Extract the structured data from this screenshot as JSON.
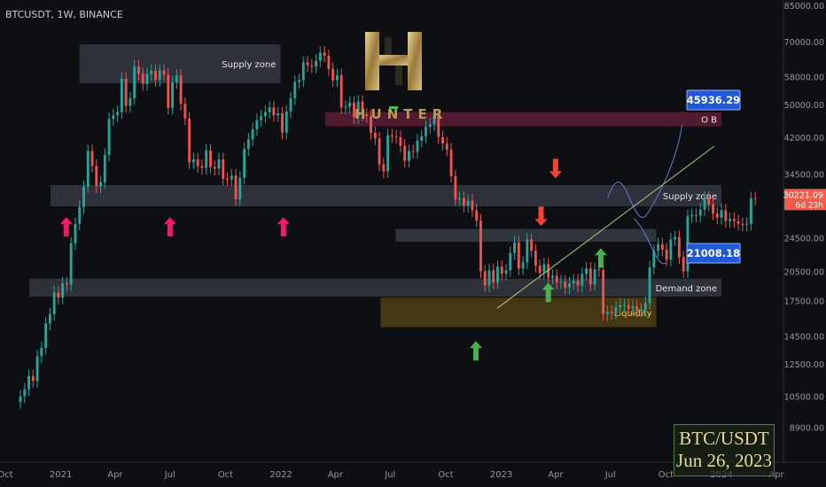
{
  "header": {
    "symbol": "BTCUSDT, 1W, BINANCE"
  },
  "logo": {
    "text": "HUNTER"
  },
  "watermark": {
    "pair": "BTC/USDT",
    "date": "Jun 26, 2023"
  },
  "colors": {
    "bull": "#26a69a",
    "bear": "#ef5350",
    "bg": "#0e0f13",
    "zone": "#3a3d47",
    "ob": "#6e1f3a",
    "liquidity": "#6b5214",
    "price_tag": "#f05d4f",
    "target_box": "#1f59d6",
    "arrow_pink": "#e91e63",
    "arrow_red": "#f44336",
    "arrow_green": "#4caf50",
    "trendline": "#a5d17a",
    "projection": "#5b7ed6"
  },
  "chart_data": {
    "type": "candlestick",
    "y_scale": "log",
    "ylim": [
      8000,
      85000
    ],
    "y_ticks": [
      85000,
      70000,
      58000,
      50000,
      42000,
      34500,
      29000,
      24500,
      20500,
      17500,
      14500,
      12500,
      10500,
      8900
    ],
    "y_tick_labels": [
      "85000.00",
      "70000.00",
      "58000.00",
      "50000.00",
      "42000.00",
      "34500.00",
      "29000.00",
      "24500.00",
      "20500.00",
      "17500.00",
      "14500.00",
      "12500.00",
      "10500.00",
      "8900.00"
    ],
    "x_ticks": [
      {
        "label": "Oct",
        "date": "2020-10-01"
      },
      {
        "label": "2021",
        "date": "2021-01-01"
      },
      {
        "label": "Apr",
        "date": "2021-04-01"
      },
      {
        "label": "Jul",
        "date": "2021-07-01"
      },
      {
        "label": "Oct",
        "date": "2021-10-01"
      },
      {
        "label": "2022",
        "date": "2022-01-01"
      },
      {
        "label": "Apr",
        "date": "2022-04-01"
      },
      {
        "label": "Jul",
        "date": "2022-07-01"
      },
      {
        "label": "Oct",
        "date": "2022-10-01"
      },
      {
        "label": "2023",
        "date": "2023-01-01"
      },
      {
        "label": "Apr",
        "date": "2023-04-01"
      },
      {
        "label": "Jul",
        "date": "2023-07-01"
      },
      {
        "label": "Oct",
        "date": "2023-10-01"
      },
      {
        "label": "2024",
        "date": "2024-01-01"
      },
      {
        "label": "Apr",
        "date": "2024-04-01"
      }
    ],
    "weekly_closes": [
      10500,
      10900,
      11700,
      11400,
      13000,
      13600,
      15500,
      16300,
      18300,
      17800,
      19200,
      19100,
      23800,
      26400,
      28900,
      32200,
      39000,
      36000,
      32300,
      33000,
      38200,
      46300,
      47200,
      48000,
      57400,
      49600,
      51700,
      61200,
      58900,
      55800,
      58800,
      59900,
      57000,
      60000,
      58700,
      49100,
      56300,
      58400,
      50200,
      46400,
      36700,
      37300,
      36000,
      35600,
      39100,
      35800,
      35500,
      37300,
      33600,
      33500,
      34200,
      30100,
      33800,
      39400,
      41500,
      43800,
      46000,
      47000,
      48000,
      49200,
      47200,
      47700,
      43000,
      48200,
      51700,
      56400,
      57000,
      62600,
      61600,
      61300,
      63200,
      66000,
      64900,
      60500,
      56900,
      58500,
      49200,
      49400,
      50500,
      46700,
      50800,
      47400,
      47000,
      43000,
      41700,
      36300,
      35000,
      42400,
      42200,
      42000,
      40100,
      37000,
      39000,
      38800,
      41200,
      42200,
      44400,
      45000,
      47200,
      42000,
      40600,
      39300,
      34100,
      30100,
      30300,
      29100,
      29900,
      28400,
      26900,
      20500,
      19000,
      20600,
      19300,
      21000,
      20200,
      20600,
      22600,
      23900,
      20800,
      21500,
      24300,
      22900,
      21100,
      20300,
      21300,
      19800,
      20000,
      19300,
      19400,
      18800,
      19200,
      19500,
      19000,
      20200,
      20800,
      19100,
      20700,
      20600,
      16300,
      16500,
      16400,
      16900,
      17100,
      17100,
      16800,
      17000,
      16600,
      16700,
      17300,
      20900,
      22900,
      23700,
      23000,
      21800,
      24300,
      24600,
      22100,
      20500,
      27500,
      27700,
      27600,
      28500,
      30400,
      29300,
      27900,
      27300,
      28400,
      26800,
      27100,
      26800,
      26400,
      26300,
      26400,
      30300,
      30221
    ]
  },
  "zones": [
    {
      "label": "Supply zone",
      "low": 56000,
      "high": 69000,
      "from": "2021-02-01",
      "to": "2021-12-31"
    },
    {
      "label": "O B",
      "low": 44500,
      "high": 48000,
      "from": "2022-03-15",
      "to": "2024-01-01"
    },
    {
      "label": "Supply zone",
      "low": 29000,
      "high": 32500,
      "from": "2020-12-15",
      "to": "2024-01-01"
    },
    {
      "label": "",
      "low": 24000,
      "high": 25700,
      "from": "2022-07-10",
      "to": "2023-09-15"
    },
    {
      "label": "Demand zone",
      "low": 17900,
      "high": 19700,
      "from": "2020-11-10",
      "to": "2024-01-01"
    },
    {
      "label": "Liquidity",
      "low": 15200,
      "high": 17800,
      "from": "2022-06-15",
      "to": "2023-09-15"
    }
  ],
  "annotations": {
    "current_price": {
      "value": 30221.09,
      "label": "30221.09",
      "countdown": "6d 23h"
    },
    "upper_target": {
      "value": 45936.29,
      "label": "45936.29"
    },
    "lower_target": {
      "value": 21008.18,
      "label": "21008.18"
    },
    "arrows": [
      {
        "dir": "up",
        "color": "pink",
        "date": "2021-01-10",
        "value": 26000
      },
      {
        "dir": "up",
        "color": "pink",
        "date": "2021-07-01",
        "value": 26000
      },
      {
        "dir": "up",
        "color": "pink",
        "date": "2022-01-05",
        "value": 26000
      },
      {
        "dir": "down",
        "color": "red",
        "date": "2023-03-08",
        "value": 27500
      },
      {
        "dir": "down",
        "color": "red",
        "date": "2023-04-01",
        "value": 35500
      },
      {
        "dir": "up",
        "color": "green",
        "date": "2022-11-20",
        "value": 13400
      },
      {
        "dir": "up",
        "color": "green",
        "date": "2023-03-20",
        "value": 18300
      },
      {
        "dir": "up",
        "color": "green",
        "date": "2023-06-15",
        "value": 22000
      }
    ],
    "trendline": {
      "from": {
        "date": "2022-12-25",
        "value": 16800
      },
      "to": {
        "date": "2023-12-20",
        "value": 40000
      }
    }
  }
}
